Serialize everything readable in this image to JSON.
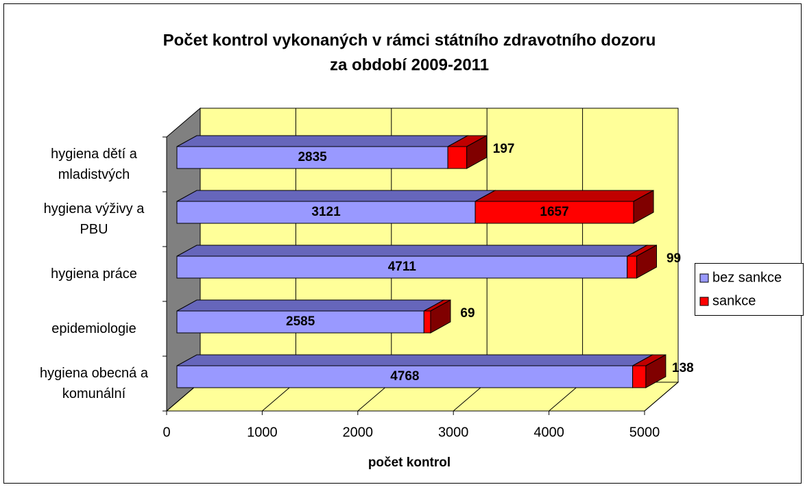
{
  "chart_data": {
    "type": "bar3d_stacked_horizontal",
    "title": [
      "Počet kontrol vykonaných v rámci státního zdravotního dozoru",
      "za období 2009-2011"
    ],
    "x_label": "počet kontrol",
    "categories": [
      "hygiena dětí a mladistvých",
      "hygiena výživy a PBU",
      "hygiena práce",
      "epidemiologie",
      "hygiena obecná a komunální"
    ],
    "series": [
      {
        "name": "bez sankce",
        "color": "#9999ff",
        "values": [
          2835,
          3121,
          4711,
          2585,
          4768
        ]
      },
      {
        "name": "sankce",
        "color": "#ff0000",
        "values": [
          197,
          1657,
          99,
          69,
          138
        ]
      }
    ],
    "xlim": [
      0,
      5000
    ],
    "xticks": [
      0,
      1000,
      2000,
      3000,
      4000,
      5000
    ],
    "grid": true,
    "legend": "right"
  }
}
